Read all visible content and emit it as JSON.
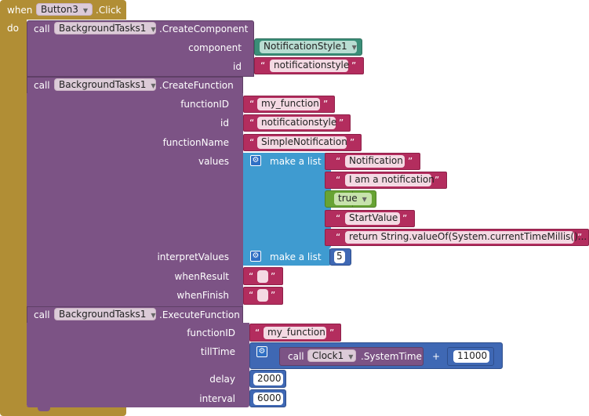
{
  "event": {
    "when": "when",
    "do": "do",
    "component": "Button3",
    "event_name": ".Click"
  },
  "create_component": {
    "call": "call",
    "component": "BackgroundTasks1",
    "method": ".CreateComponent",
    "args": [
      {
        "label": "component",
        "value": "NotificationStyle1"
      },
      {
        "label": "id",
        "value": "notificationstyle"
      }
    ]
  },
  "create_function": {
    "call": "call",
    "component": "BackgroundTasks1",
    "method": ".CreateFunction",
    "function_id_label": "functionID",
    "function_id": "my_function",
    "id_label": "id",
    "id": "notificationstyle",
    "function_name_label": "functionName",
    "function_name": "SimpleNotification",
    "values_label": "values",
    "make_list": "make a list",
    "values": [
      "Notification",
      "I am a notification",
      "StartValue",
      "return String.valueOf(System.currentTimeMillis()..."
    ],
    "bool_value": "true",
    "interpret_label": "interpretValues",
    "interpret_make_list": "make a list",
    "interpret_value": "5",
    "when_result_label": "whenResult",
    "when_finish_label": "whenFinish"
  },
  "execute_function": {
    "call": "call",
    "component": "BackgroundTasks1",
    "method": ".ExecuteFunction",
    "function_id_label": "functionID",
    "function_id": "my_function",
    "till_time_label": "tillTime",
    "clock_call": "call",
    "clock_component": "Clock1",
    "clock_method": ".SystemTime",
    "plus": "+",
    "add_value": "11000",
    "delay_label": "delay",
    "delay": "2000",
    "interval_label": "interval",
    "interval": "6000"
  },
  "symbols": {
    "open_quote": "“",
    "close_quote": "”",
    "dropdown": "▼",
    "gear": "⚙"
  },
  "colors": {
    "event": "#b18e35",
    "component": "#7c5385",
    "text": "#b32d5e",
    "list": "#3f9bd0",
    "math": "#3f68b4",
    "logic": "#67a334",
    "component_block": "#3b8e78"
  },
  "icons": {
    "mutator": "gear-icon",
    "dropdown": "dropdown-arrow-icon"
  }
}
